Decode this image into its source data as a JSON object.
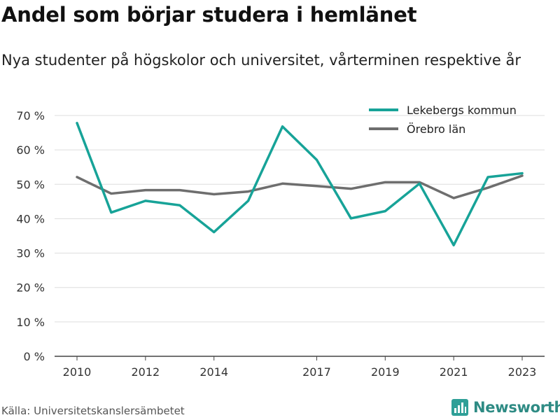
{
  "title": "Andel som börjar studera i hemlänet",
  "subtitle": "Nya studenter på högskolor och universitet, vårterminen respektive år",
  "source": "Källa: Universitetskanslersämbetet",
  "brand": {
    "name": "Newsworthy",
    "icon": "bar-chart-icon",
    "color": "#2e9f97"
  },
  "chart_data": {
    "type": "line",
    "x_ticks": [
      2010,
      2012,
      2014,
      2017,
      2019,
      2021,
      2023
    ],
    "y_ticks": [
      "0 %",
      "10 %",
      "20 %",
      "30 %",
      "40 %",
      "50 %",
      "60 %",
      "70 %"
    ],
    "ylim": [
      0,
      70
    ],
    "xlim": [
      2010,
      2023
    ],
    "grid": true,
    "legend_position": "top-right",
    "x": [
      2010,
      2011,
      2012,
      2013,
      2014,
      2015,
      2016,
      2017,
      2018,
      2019,
      2020,
      2021,
      2022,
      2023
    ],
    "series": [
      {
        "name": "Lekebergs kommun",
        "color": "#17a398",
        "values": [
          67.8,
          41.8,
          45.2,
          43.9,
          36.1,
          45.2,
          66.8,
          57.1,
          40.1,
          42.2,
          50.2,
          32.3,
          52.1,
          53.2
        ]
      },
      {
        "name": "Örebro län",
        "color": "#6e6e6e",
        "values": [
          52.1,
          47.3,
          48.3,
          48.3,
          47.1,
          47.9,
          50.2,
          49.5,
          48.7,
          50.6,
          50.6,
          46.0,
          49.0,
          52.5
        ]
      }
    ]
  }
}
